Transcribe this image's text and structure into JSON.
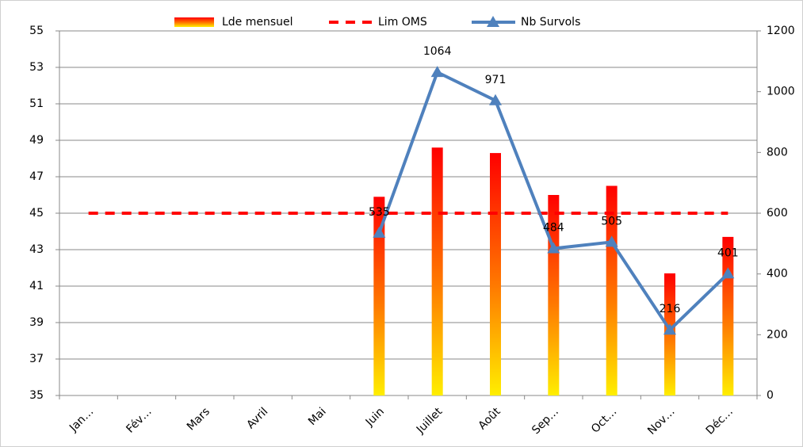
{
  "chart_data": {
    "type": "bar",
    "categories": [
      "Jan…",
      "Fév…",
      "Mars",
      "Avril",
      "Mai",
      "Juin",
      "Juillet",
      "Août",
      "Sep…",
      "Oct…",
      "Nov…",
      "Déc…"
    ],
    "series": [
      {
        "name": "Lde mensuel",
        "type": "bar",
        "color": "#ff0000",
        "values": [
          35,
          35,
          35,
          35,
          35,
          45.9,
          48.6,
          48.3,
          46.0,
          46.5,
          41.7,
          43.7
        ]
      },
      {
        "name": "Lim OMS",
        "type": "line",
        "dashed": true,
        "color": "#ff0000",
        "values": [
          45,
          45,
          45,
          45,
          45,
          45,
          45,
          45,
          45,
          45,
          45,
          45
        ]
      },
      {
        "name": "Nb Survols",
        "type": "line",
        "marker": "triangle",
        "axis": "y2",
        "color": "#4f81bd",
        "values": [
          null,
          null,
          null,
          null,
          null,
          535,
          1064,
          971,
          484,
          505,
          216,
          401
        ]
      }
    ],
    "ylim": [
      35,
      55
    ],
    "yticks": [
      35,
      37,
      39,
      41,
      43,
      45,
      47,
      49,
      51,
      53,
      55
    ],
    "y2lim": [
      0,
      1200
    ],
    "y2ticks": [
      0,
      200,
      400,
      600,
      800,
      1000,
      1200
    ],
    "grid": true,
    "legend": "top"
  }
}
